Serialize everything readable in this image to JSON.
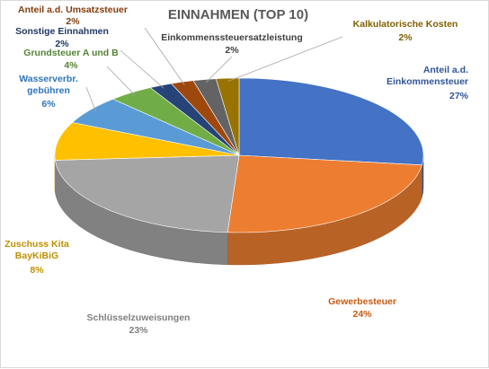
{
  "chart_data": {
    "type": "pie",
    "title": "EINNAHMEN (TOP 10)",
    "slices": [
      {
        "label": "Anteil a.d. Einkommensteuer",
        "percent_label": "27%",
        "value": 27,
        "color": "#4472c4"
      },
      {
        "label": "Gewerbesteuer",
        "percent_label": "24%",
        "value": 24,
        "color": "#ed7d31"
      },
      {
        "label": "Schlüsselzuweisungen",
        "percent_label": "23%",
        "value": 23,
        "color": "#a5a5a5"
      },
      {
        "label": "Zuschuss Kita BayKiBiG",
        "percent_label": "8%",
        "value": 8,
        "color": "#ffc000"
      },
      {
        "label": "Wasserverbr. gebühren",
        "percent_label": "6%",
        "value": 6,
        "color": "#5b9bd5"
      },
      {
        "label": "Grundsteuer A und B",
        "percent_label": "4%",
        "value": 4,
        "color": "#70ad47"
      },
      {
        "label": "Sonstige Einnahmen",
        "percent_label": "2%",
        "value": 2,
        "color": "#264478"
      },
      {
        "label": "Anteil a.d. Umsatzsteuer",
        "percent_label": "2%",
        "value": 2,
        "color": "#9e480e"
      },
      {
        "label": "Einkommenssteuersatzleistung",
        "percent_label": "2%",
        "value": 2,
        "color": "#636363"
      },
      {
        "label": "Kalkulatorische Kosten",
        "percent_label": "2%",
        "value": 2,
        "color": "#997300"
      }
    ]
  }
}
